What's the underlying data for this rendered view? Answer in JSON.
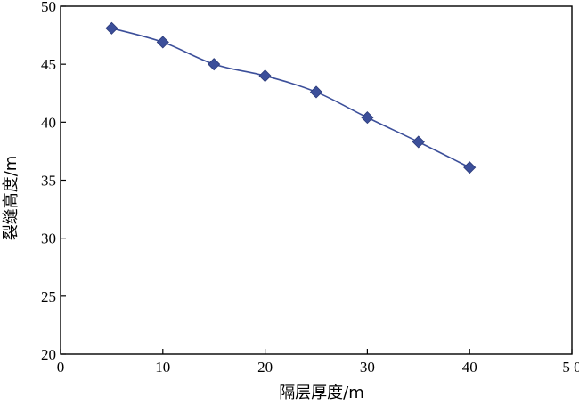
{
  "chart_data": {
    "type": "line",
    "title": "",
    "xlabel": "隔层厚度/m",
    "ylabel": "裂缝高度/m",
    "xlim": [
      0,
      50
    ],
    "ylim": [
      20,
      50
    ],
    "x_ticks": [
      0,
      10,
      20,
      30,
      40,
      50
    ],
    "x_tick_labels": [
      "0",
      "10",
      "20",
      "30",
      "40",
      "5 0"
    ],
    "y_ticks": [
      20,
      25,
      30,
      35,
      40,
      45,
      50
    ],
    "y_tick_labels": [
      "20",
      "25",
      "30",
      "35",
      "40",
      "45",
      "50"
    ],
    "grid": false,
    "legend": "none",
    "series": [
      {
        "x": [
          5,
          10,
          15,
          20,
          25,
          30,
          35,
          40
        ],
        "values": [
          48.1,
          46.9,
          45.0,
          44.0,
          42.6,
          40.4,
          38.3,
          36.1
        ],
        "color": "#3c4f9a",
        "marker": "diamond"
      }
    ]
  }
}
